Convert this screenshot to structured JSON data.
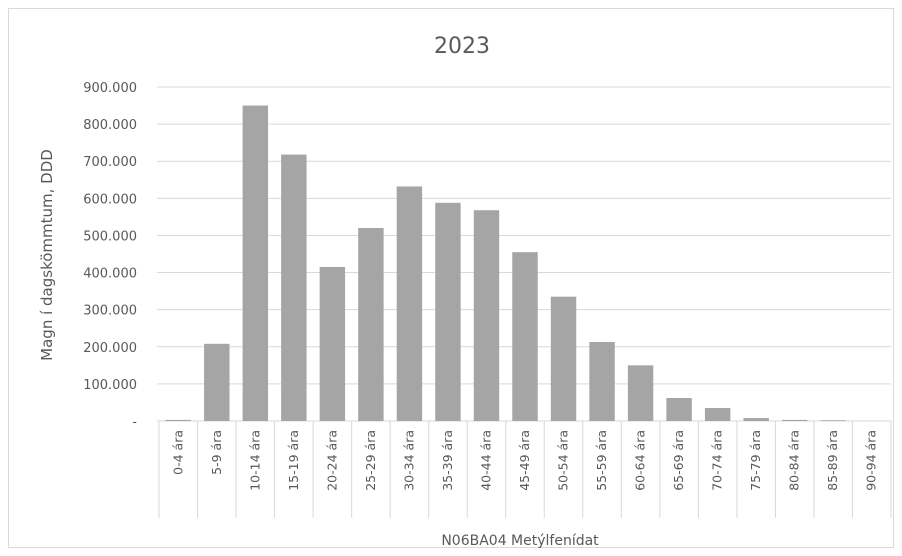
{
  "chart_data": {
    "type": "bar",
    "title": "2023",
    "xlabel": "N06BA04 Metýlfenídat",
    "ylabel": "Magn í dagskömmtum, DDD",
    "ylim": [
      0,
      900000
    ],
    "y_ticks": [
      {
        "value": 0,
        "label": "-"
      },
      {
        "value": 100000,
        "label": "100.000"
      },
      {
        "value": 200000,
        "label": "200.000"
      },
      {
        "value": 300000,
        "label": "300.000"
      },
      {
        "value": 400000,
        "label": "400.000"
      },
      {
        "value": 500000,
        "label": "500.000"
      },
      {
        "value": 600000,
        "label": "600.000"
      },
      {
        "value": 700000,
        "label": "700.000"
      },
      {
        "value": 800000,
        "label": "800.000"
      },
      {
        "value": 900000,
        "label": "900.000"
      }
    ],
    "categories": [
      "0-4 ára",
      "5-9 ára",
      "10-14 ára",
      "15-19 ára",
      "20-24 ára",
      "25-29 ára",
      "30-34 ára",
      "35-39 ára",
      "40-44 ára",
      "45-49 ára",
      "50-54 ára",
      "55-59 ára",
      "60-64 ára",
      "65-69 ára",
      "70-74 ára",
      "75-79 ára",
      "80-84 ára",
      "85-89 ára",
      "90-94 ára"
    ],
    "values": [
      3000,
      208000,
      850000,
      718000,
      415000,
      520000,
      632000,
      588000,
      568000,
      455000,
      335000,
      213000,
      150000,
      62000,
      35000,
      8000,
      3000,
      2000,
      0
    ],
    "grid": true,
    "colors": {
      "bar": "#a5a5a5",
      "grid": "#d9d9d9",
      "text": "#595959"
    }
  }
}
